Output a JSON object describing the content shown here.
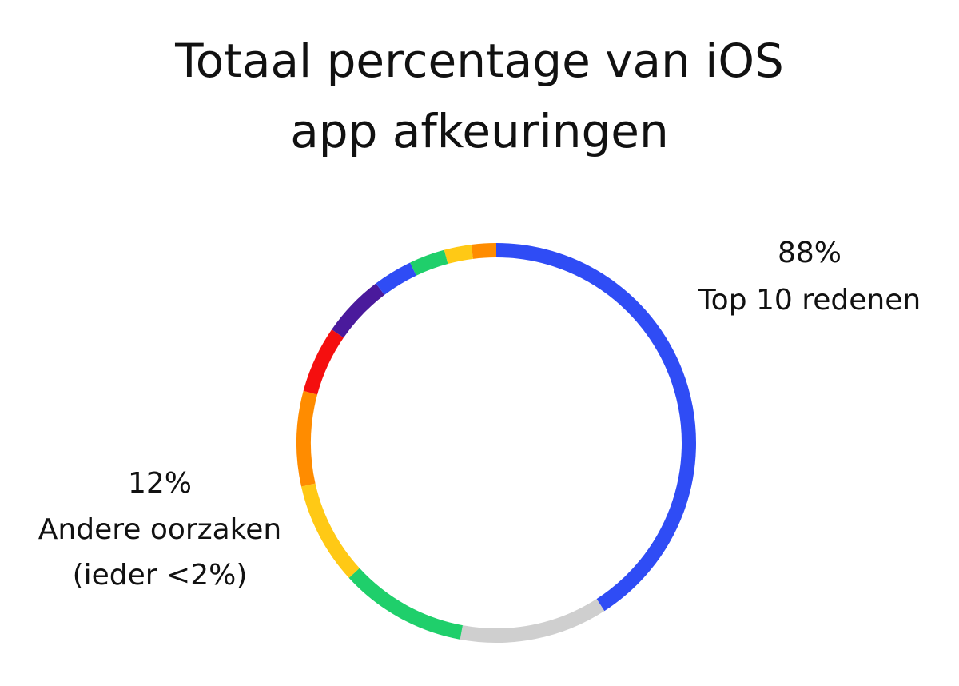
{
  "chart_data": {
    "type": "donut",
    "title": [
      "Totaal percentage van iOS",
      "app afkeuringen"
    ],
    "categories": [
      null,
      null,
      null,
      null,
      null,
      null,
      null,
      null,
      null,
      null,
      null
    ],
    "values": [
      40.9,
      12,
      10.3,
      8.3,
      7.7,
      5.4,
      5.1,
      3.2,
      2.9,
      2.2,
      2.0
    ],
    "colors": [
      "#2f4cf5",
      "#cfcfcf",
      "#1fcf6b",
      "#ffc915",
      "#ff8c00",
      "#f50f0f",
      "#4a1a9c",
      "#2f4cf5",
      "#1fcf6b",
      "#ffc915",
      "#ff8c00"
    ],
    "annotations": [
      {
        "value": 88,
        "label": "88%",
        "lines": [
          "Top 10 redenen"
        ]
      },
      {
        "value": 12,
        "label": "12%",
        "lines": [
          "Andere oorzaken",
          "(ieder <2%)"
        ]
      }
    ]
  }
}
